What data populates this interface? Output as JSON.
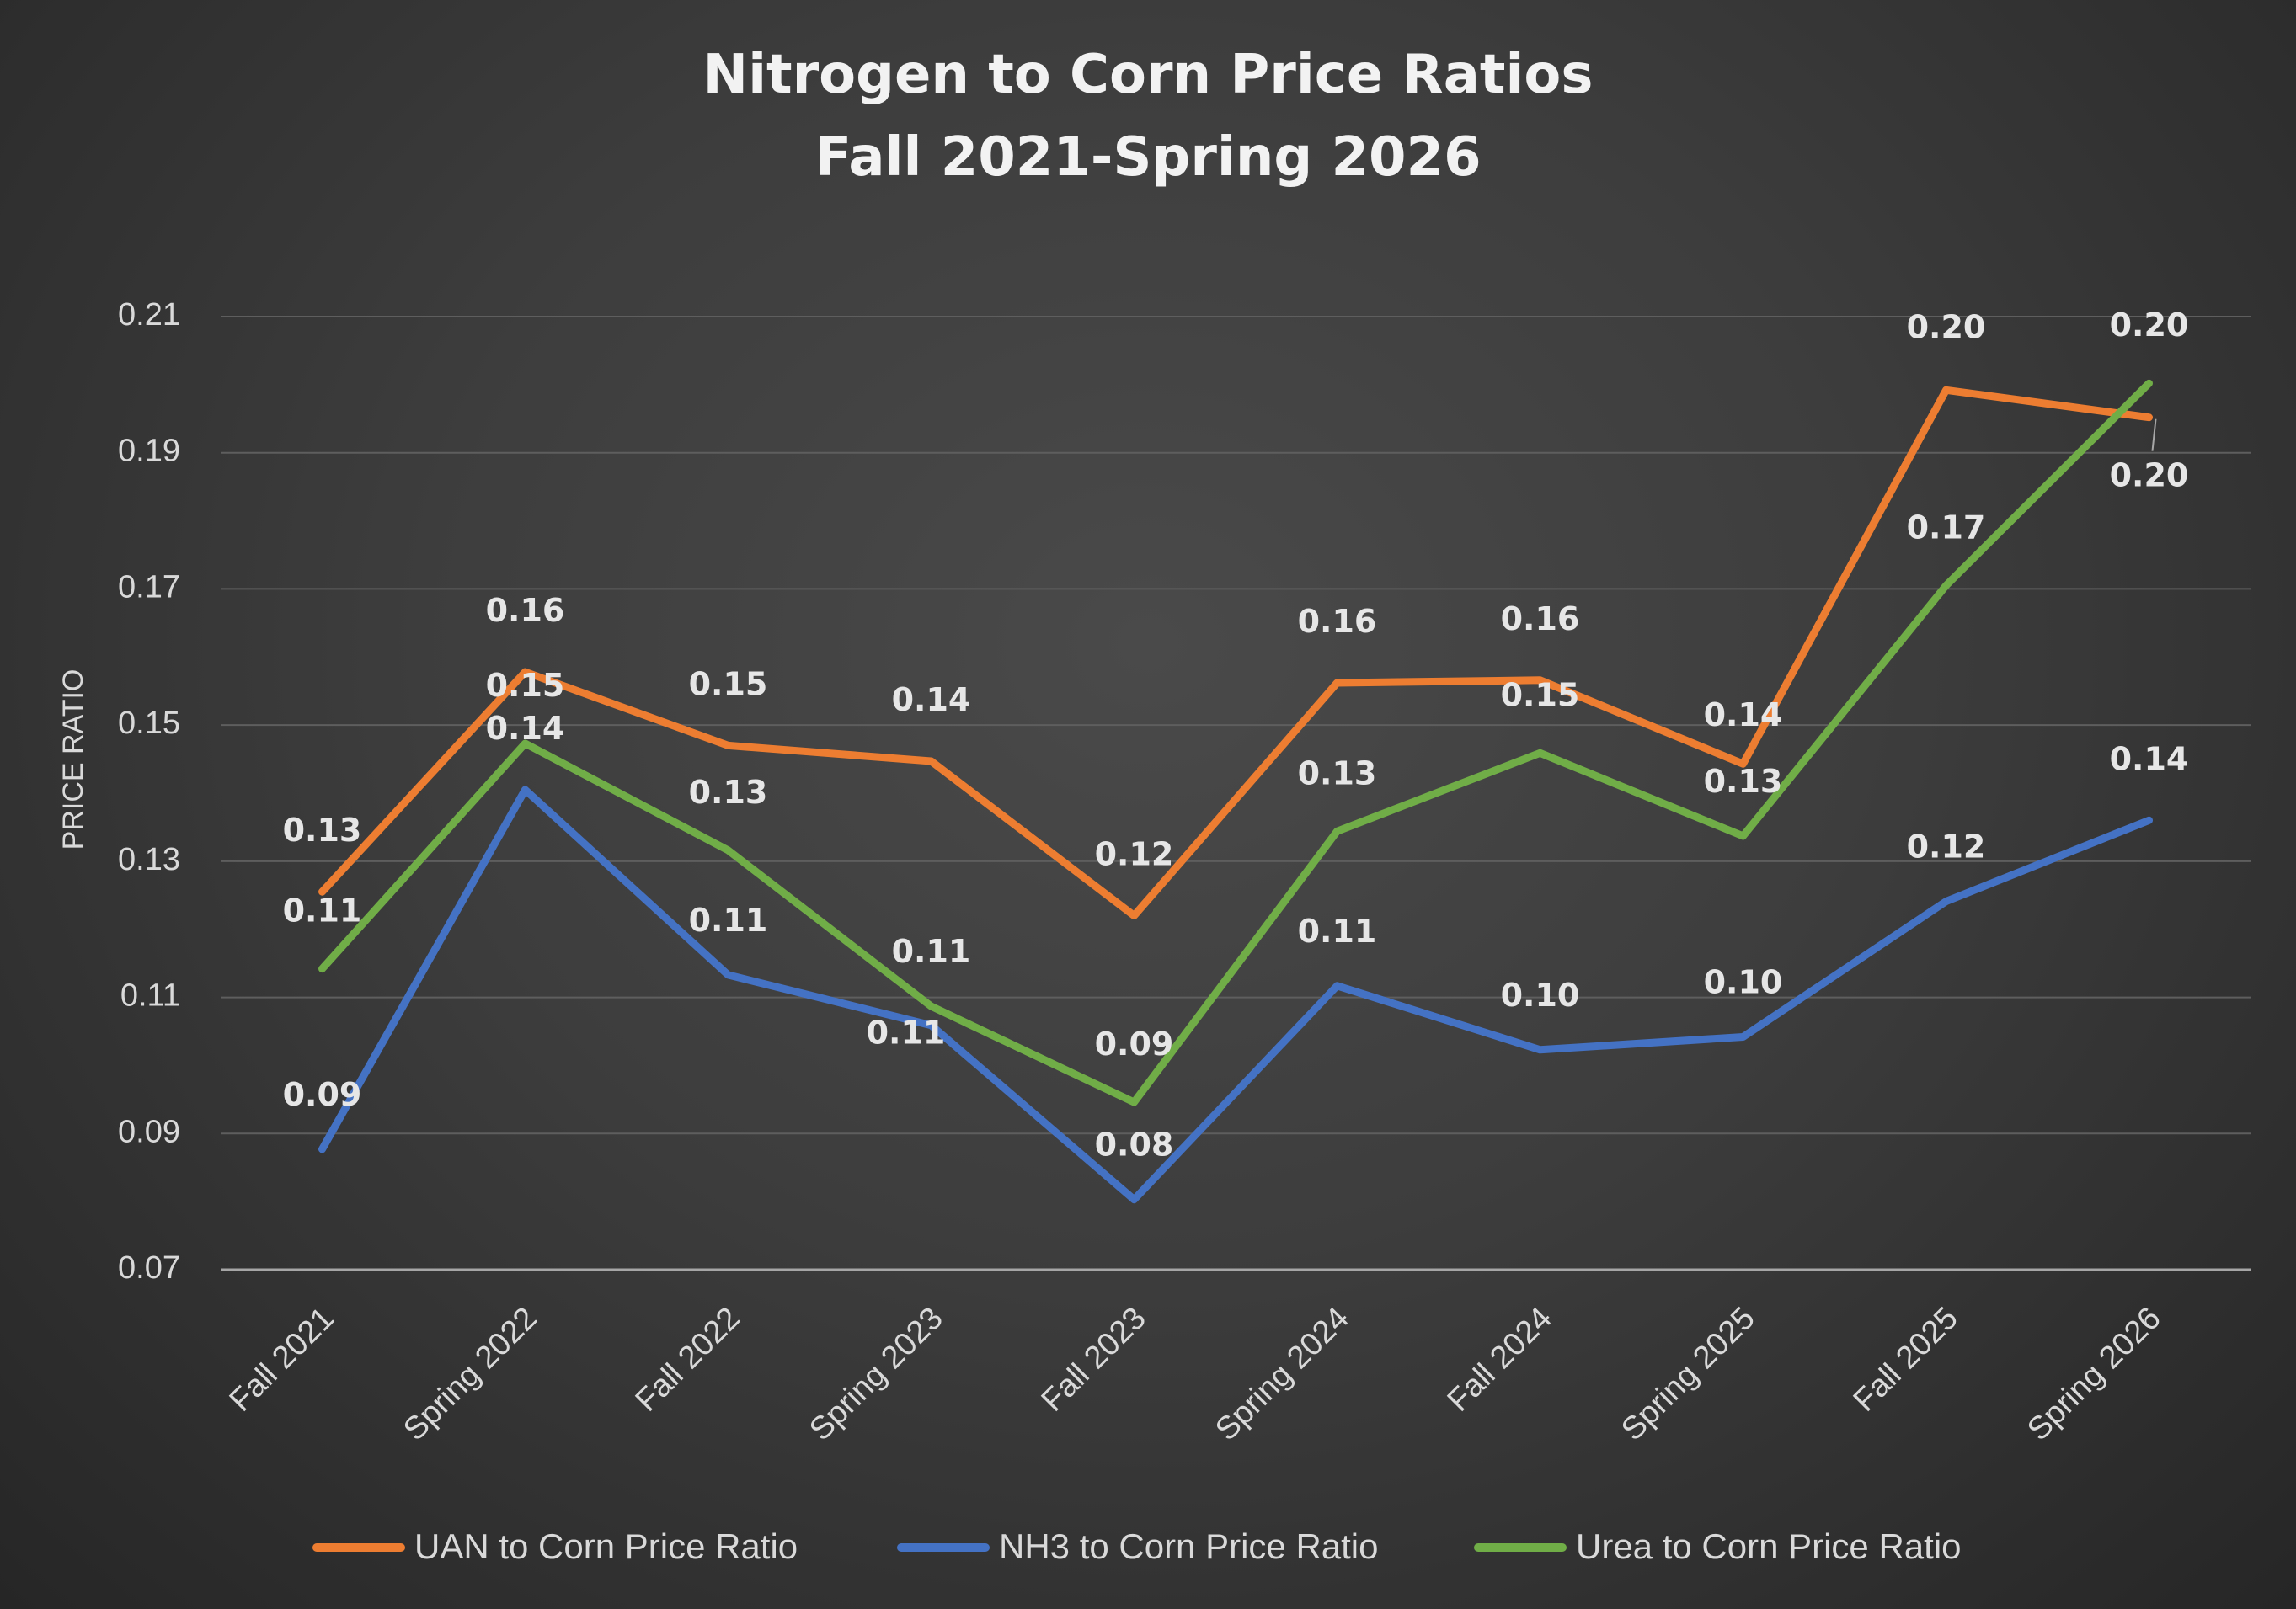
{
  "chart_data": {
    "type": "line",
    "title": [
      "Nitrogen to Corn Price Ratios",
      "Fall 2021-Spring 2026"
    ],
    "xlabel": "",
    "ylabel": "PRICE RATIO",
    "categories": [
      "Fall 2021",
      "Spring 2022",
      "Fall 2022",
      "Spring 2023",
      "Fall 2023",
      "Spring 2024",
      "Fall 2024",
      "Spring 2025",
      "Fall 2025",
      "Spring 2026"
    ],
    "ylim": [
      0.07,
      0.21
    ],
    "yticks": [
      "0.07",
      "0.09",
      "0.11",
      "0.13",
      "0.15",
      "0.17",
      "0.19",
      "0.21"
    ],
    "grid": true,
    "legend_position": "bottom",
    "series": [
      {
        "name": "UAN to Corn Price Ratio",
        "color": "#ed7d31",
        "values": [
          0.1255,
          0.1578,
          0.147,
          0.1447,
          0.122,
          0.1562,
          0.1566,
          0.1443,
          0.1992,
          0.1952
        ],
        "labels": [
          "0.13",
          "0.16",
          "0.15",
          "0.14",
          "0.12",
          "0.16",
          "0.16",
          "0.14",
          "0.20",
          "0.20"
        ]
      },
      {
        "name": "NH3 to Corn Price Ratio",
        "color": "#4472c4",
        "values": [
          0.0877,
          0.1405,
          0.1133,
          0.1059,
          0.0803,
          0.1117,
          0.1023,
          0.1042,
          0.1241,
          0.136
        ],
        "labels": [
          "0.09",
          "0.14",
          "0.11",
          "0.11",
          "0.08",
          "0.11",
          "0.10",
          "0.10",
          "0.12",
          "0.14"
        ]
      },
      {
        "name": "Urea to Corn Price Ratio",
        "color": "#70ad47",
        "values": [
          0.1142,
          0.1473,
          0.1316,
          0.1087,
          0.0946,
          0.1344,
          0.1459,
          0.1337,
          0.1705,
          0.2002
        ],
        "labels": [
          "0.11",
          "0.15",
          "0.13",
          "0.11",
          "0.09",
          "0.13",
          "0.15",
          "0.13",
          "0.17",
          "0.20"
        ]
      }
    ]
  }
}
